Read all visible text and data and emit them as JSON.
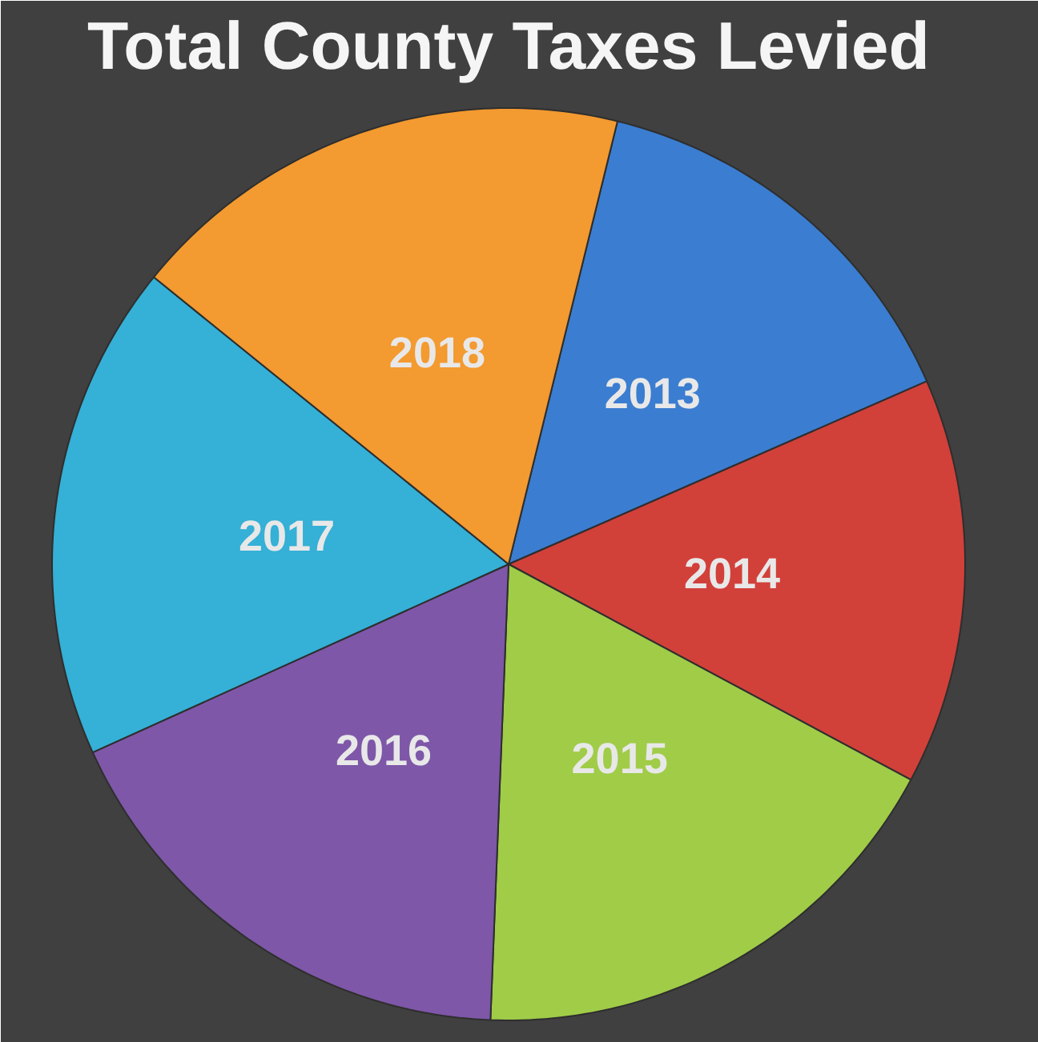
{
  "chart_data": {
    "type": "pie",
    "title": "Total County Taxes Levied",
    "categories": [
      "2013",
      "2014",
      "2015",
      "2016",
      "2017",
      "2018"
    ],
    "values": [
      14.6,
      14.4,
      17.8,
      17.6,
      17.6,
      18.0
    ],
    "colors": [
      "#3b7dd0",
      "#d2403a",
      "#a0cc48",
      "#7e57a8",
      "#35b0d6",
      "#f39a30"
    ]
  }
}
